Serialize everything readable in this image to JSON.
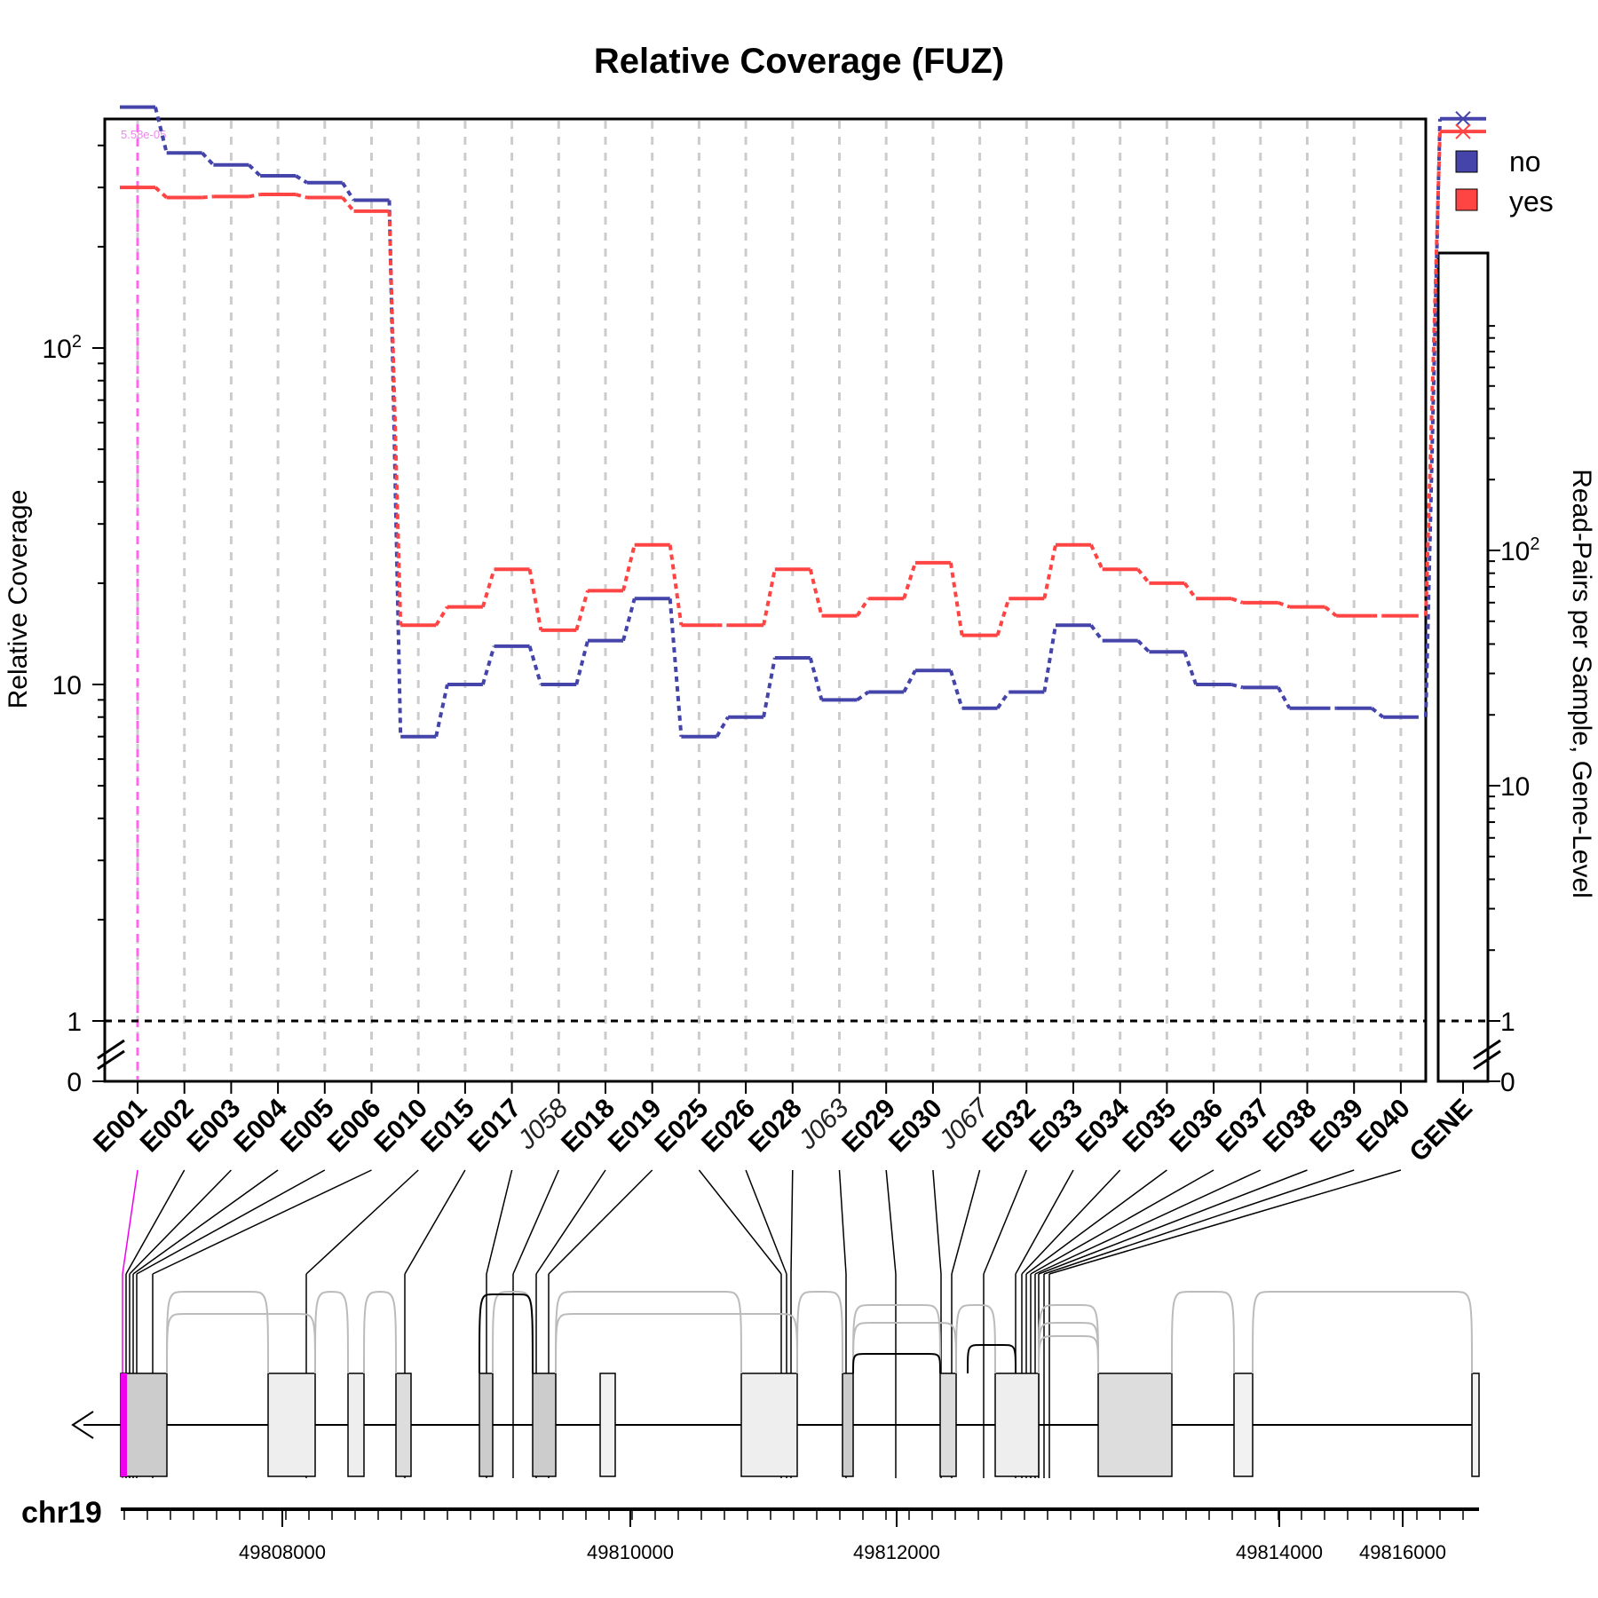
{
  "title": "Relative Coverage (FUZ)",
  "ylabel_left": "Relative Coverage",
  "ylabel_right": "Read-Pairs per Sample, Gene-Level",
  "chromosome": "chr19",
  "pvalue_note": "5.58e-05",
  "colors": {
    "no": "#4444aa",
    "yes": "#ff4444",
    "highlight": "#ee00ee",
    "grid": "#cccccc"
  },
  "legend": [
    {
      "name": "no",
      "color": "#4444aa"
    },
    {
      "name": "yes",
      "color": "#ff4444"
    }
  ],
  "left_ticks": {
    "major": [
      "1",
      "10",
      "10^2"
    ],
    "zero": "0"
  },
  "right_ticks": {
    "major": [
      "1",
      "10",
      "10^2"
    ],
    "zero": "0"
  },
  "genomic_ticks": [
    "49808000",
    "49810000",
    "49812000",
    "49814000",
    "49816000"
  ],
  "chart_data": {
    "type": "line",
    "title": "Relative Coverage (FUZ)",
    "yscale": "log",
    "ylim": [
      1,
      700
    ],
    "reference_line": 1,
    "categories": [
      "E001",
      "E002",
      "E003",
      "E004",
      "E005",
      "E006",
      "E010",
      "E015",
      "E017",
      "J058",
      "E018",
      "E019",
      "E025",
      "E026",
      "E028",
      "J063",
      "E029",
      "E030",
      "J067",
      "E032",
      "E033",
      "E034",
      "E035",
      "E036",
      "E037",
      "E038",
      "E039",
      "E040"
    ],
    "category_style": [
      "bold",
      "bold",
      "bold",
      "bold",
      "bold",
      "bold",
      "bold",
      "bold",
      "bold",
      "italic",
      "bold",
      "bold",
      "bold",
      "bold",
      "bold",
      "italic",
      "bold",
      "bold",
      "italic",
      "bold",
      "bold",
      "bold",
      "bold",
      "bold",
      "bold",
      "bold",
      "bold",
      "bold"
    ],
    "series": [
      {
        "name": "no",
        "values": [
          520,
          380,
          350,
          325,
          310,
          275,
          7,
          10,
          13,
          10,
          13.5,
          18,
          7,
          8,
          12,
          9,
          9.5,
          11,
          8.5,
          9.5,
          15,
          13.5,
          12.5,
          10,
          9.8,
          8.5,
          8.5,
          8
        ]
      },
      {
        "name": "yes",
        "values": [
          300,
          280,
          282,
          286,
          280,
          255,
          15,
          17,
          22,
          14.5,
          19,
          26,
          15,
          15,
          22,
          16,
          18,
          23,
          14,
          18,
          26,
          22,
          20,
          18,
          17.5,
          17,
          16,
          16
        ]
      }
    ],
    "gene_level": {
      "label": "GENE",
      "ylim": [
        1,
        700
      ],
      "no": 480,
      "yes": 440
    }
  }
}
